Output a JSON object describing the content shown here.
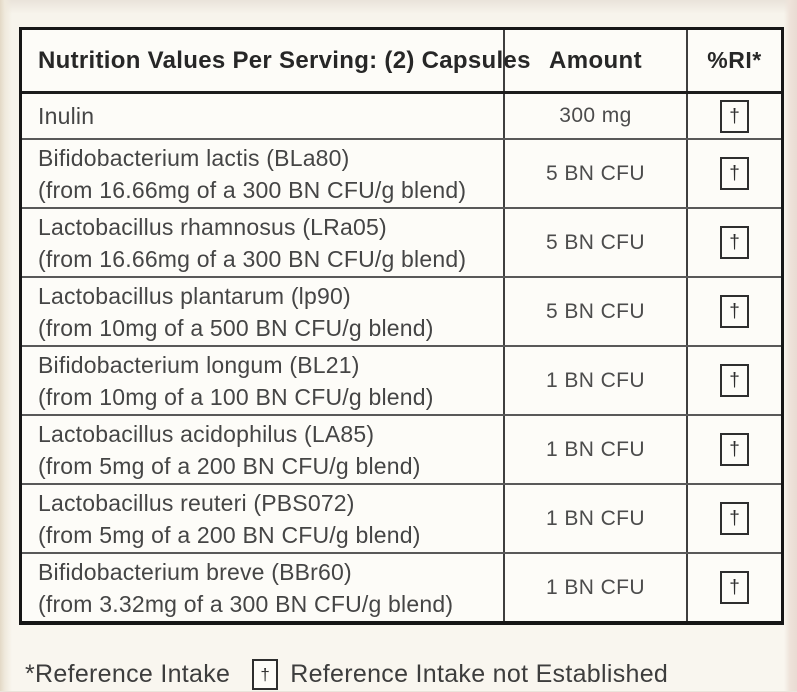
{
  "colors": {
    "page_background": "#f7f4ec",
    "cell_background": "#fdfcf8",
    "outer_border": "#161616",
    "grid_line": "#595959",
    "header_text": "#272727",
    "body_text": "#454545",
    "left_edge_strip": "#e3d9c6",
    "right_edge_strip": "#e9dbd3"
  },
  "table": {
    "header": {
      "name": "Nutrition Values Per Serving: (2) Capsules",
      "amount": "Amount",
      "ri": "%RI*"
    },
    "rows": [
      {
        "name": "Inulin",
        "detail": "",
        "amount": "300 mg",
        "ri_symbol": "†"
      },
      {
        "name": "Bifidobacterium lactis (BLa80)",
        "detail": "(from 16.66mg of a 300 BN CFU/g blend)",
        "amount": "5 BN CFU",
        "ri_symbol": "†"
      },
      {
        "name": "Lactobacillus rhamnosus (LRa05)",
        "detail": "(from 16.66mg of a 300 BN CFU/g blend)",
        "amount": "5 BN CFU",
        "ri_symbol": "†"
      },
      {
        "name": "Lactobacillus plantarum (lp90)",
        "detail": "(from 10mg of a 500 BN CFU/g blend)",
        "amount": "5 BN CFU",
        "ri_symbol": "†"
      },
      {
        "name": "Bifidobacterium longum (BL21)",
        "detail": "(from 10mg of a 100 BN CFU/g blend)",
        "amount": "1 BN CFU",
        "ri_symbol": "†"
      },
      {
        "name": "Lactobacillus acidophilus (LA85)",
        "detail": "(from 5mg of a 200 BN CFU/g blend)",
        "amount": "1 BN CFU",
        "ri_symbol": "†"
      },
      {
        "name": "Lactobacillus reuteri (PBS072)",
        "detail": "(from 5mg of a 200 BN CFU/g blend)",
        "amount": "1 BN CFU",
        "ri_symbol": "†"
      },
      {
        "name": "Bifidobacterium breve (BBr60)",
        "detail": "(from 3.32mg of a 300 BN CFU/g blend)",
        "amount": "1 BN CFU",
        "ri_symbol": "†"
      }
    ]
  },
  "footnote": {
    "reference_intake": "*Reference Intake",
    "dagger_symbol": "†",
    "not_established": "Reference Intake not Established"
  }
}
